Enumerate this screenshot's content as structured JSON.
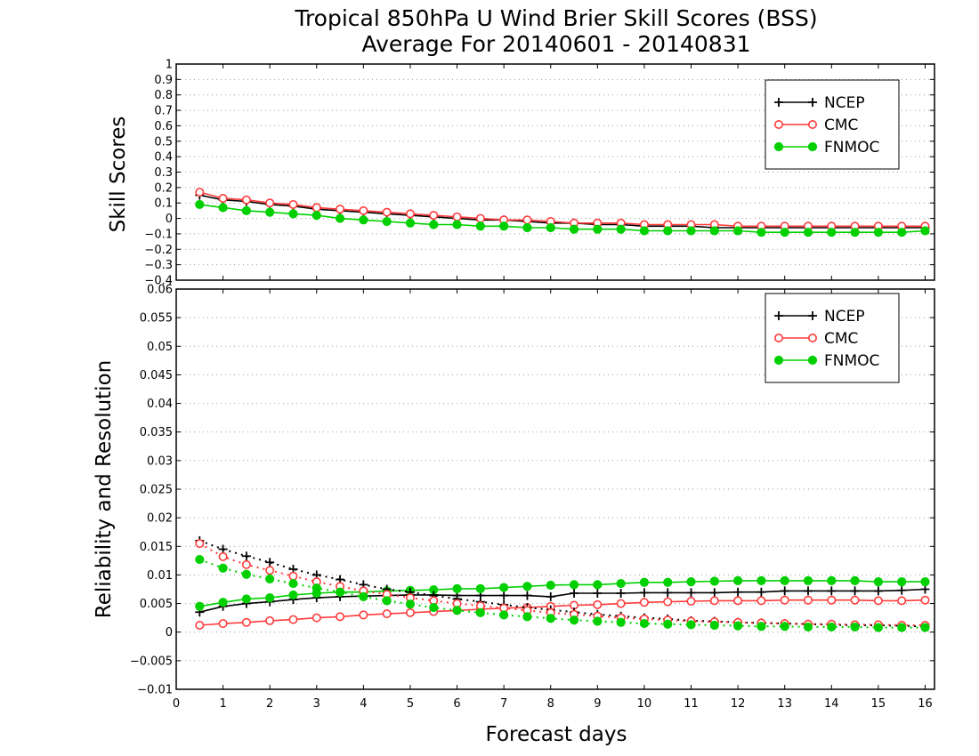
{
  "title_line1": "Tropical 850hPa U Wind Brier Skill Scores (BSS)",
  "title_line2": "Average For 20140601 - 20140831",
  "xlabel": "Forecast days",
  "colors": {
    "ncep": "#000000",
    "cmc": "#ff3b3b",
    "fnmoc": "#00d000",
    "grid": "#999999"
  },
  "chart_data": [
    {
      "type": "line",
      "panel": "top",
      "ylabel": "Skill Scores",
      "xlim": [
        0,
        16.2
      ],
      "ylim": [
        -0.4,
        1
      ],
      "xticks": [
        0,
        1,
        2,
        3,
        4,
        5,
        6,
        7,
        8,
        9,
        10,
        11,
        12,
        13,
        14,
        15,
        16
      ],
      "yticks": [
        -0.4,
        -0.3,
        -0.2,
        -0.1,
        0,
        0.1,
        0.2,
        0.3,
        0.4,
        0.5,
        0.6,
        0.7,
        0.8,
        0.9,
        1
      ],
      "ytick_labels": [
        "−0.4",
        "−0.3",
        "−0.2",
        "−0.1",
        "0",
        "0.1",
        "0.2",
        "0.3",
        "0.4",
        "0.5",
        "0.6",
        "0.7",
        "0.8",
        "0.9",
        "1"
      ],
      "grid": true,
      "legend": "top-right",
      "x": [
        0.5,
        1,
        1.5,
        2,
        2.5,
        3,
        3.5,
        4,
        4.5,
        5,
        5.5,
        6,
        6.5,
        7,
        7.5,
        8,
        8.5,
        9,
        9.5,
        10,
        10.5,
        11,
        11.5,
        12,
        12.5,
        13,
        13.5,
        14,
        14.5,
        15,
        15.5,
        16
      ],
      "series": [
        {
          "name": "NCEP",
          "key": "ncep",
          "marker": "plus",
          "style": "solid",
          "values": [
            0.15,
            0.12,
            0.11,
            0.09,
            0.08,
            0.06,
            0.05,
            0.04,
            0.03,
            0.02,
            0.01,
            0.0,
            -0.01,
            -0.01,
            -0.02,
            -0.03,
            -0.03,
            -0.04,
            -0.04,
            -0.05,
            -0.05,
            -0.05,
            -0.06,
            -0.06,
            -0.06,
            -0.06,
            -0.06,
            -0.06,
            -0.06,
            -0.06,
            -0.06,
            -0.06
          ]
        },
        {
          "name": "CMC",
          "key": "cmc",
          "marker": "open-circle",
          "style": "solid",
          "values": [
            0.17,
            0.13,
            0.12,
            0.1,
            0.09,
            0.07,
            0.06,
            0.05,
            0.04,
            0.03,
            0.02,
            0.01,
            0.0,
            -0.01,
            -0.01,
            -0.02,
            -0.03,
            -0.03,
            -0.03,
            -0.04,
            -0.04,
            -0.04,
            -0.04,
            -0.05,
            -0.05,
            -0.05,
            -0.05,
            -0.05,
            -0.05,
            -0.05,
            -0.05,
            -0.05
          ]
        },
        {
          "name": "FNMOC",
          "key": "fnmoc",
          "marker": "filled-circle",
          "style": "solid",
          "values": [
            0.09,
            0.07,
            0.05,
            0.04,
            0.03,
            0.02,
            0.0,
            -0.01,
            -0.02,
            -0.03,
            -0.04,
            -0.04,
            -0.05,
            -0.05,
            -0.06,
            -0.06,
            -0.07,
            -0.07,
            -0.07,
            -0.08,
            -0.08,
            -0.08,
            -0.08,
            -0.08,
            -0.09,
            -0.09,
            -0.09,
            -0.09,
            -0.09,
            -0.09,
            -0.09,
            -0.08
          ]
        }
      ]
    },
    {
      "type": "line",
      "panel": "bottom",
      "ylabel": "Reliability and Resolution",
      "xlabel": "Forecast days",
      "xlim": [
        0,
        16.2
      ],
      "ylim": [
        -0.01,
        0.06
      ],
      "xticks": [
        0,
        1,
        2,
        3,
        4,
        5,
        6,
        7,
        8,
        9,
        10,
        11,
        12,
        13,
        14,
        15,
        16
      ],
      "yticks": [
        -0.01,
        -0.005,
        0,
        0.005,
        0.01,
        0.015,
        0.02,
        0.025,
        0.03,
        0.035,
        0.04,
        0.045,
        0.05,
        0.055,
        0.06
      ],
      "ytick_labels": [
        "−0.01",
        "−0.005",
        "0",
        "0.005",
        "0.01",
        "0.015",
        "0.02",
        "0.025",
        "0.03",
        "0.035",
        "0.04",
        "0.045",
        "0.05",
        "0.055",
        "0.06"
      ],
      "grid": true,
      "legend": "top-right",
      "x": [
        0.5,
        1,
        1.5,
        2,
        2.5,
        3,
        3.5,
        4,
        4.5,
        5,
        5.5,
        6,
        6.5,
        7,
        7.5,
        8,
        8.5,
        9,
        9.5,
        10,
        10.5,
        11,
        11.5,
        12,
        12.5,
        13,
        13.5,
        14,
        14.5,
        15,
        15.5,
        16
      ],
      "series": [
        {
          "name": "NCEP",
          "key": "ncep",
          "marker": "plus",
          "style": "solid",
          "legend": true,
          "values": [
            0.0035,
            0.0045,
            0.005,
            0.0053,
            0.0057,
            0.006,
            0.0062,
            0.0063,
            0.0064,
            0.0065,
            0.0065,
            0.0064,
            0.0064,
            0.0064,
            0.0064,
            0.0062,
            0.0068,
            0.0068,
            0.0068,
            0.0069,
            0.0069,
            0.0069,
            0.0069,
            0.007,
            0.007,
            0.0072,
            0.0072,
            0.0072,
            0.0072,
            0.0072,
            0.0073,
            0.0075
          ]
        },
        {
          "name": "CMC",
          "key": "cmc",
          "marker": "open-circle",
          "style": "solid",
          "legend": true,
          "values": [
            0.0012,
            0.0015,
            0.0017,
            0.002,
            0.0022,
            0.0025,
            0.0027,
            0.003,
            0.0032,
            0.0034,
            0.0036,
            0.0038,
            0.004,
            0.0042,
            0.0043,
            0.0045,
            0.0047,
            0.0048,
            0.005,
            0.0052,
            0.0053,
            0.0054,
            0.0055,
            0.0055,
            0.0055,
            0.0056,
            0.0056,
            0.0056,
            0.0056,
            0.0055,
            0.0055,
            0.0056
          ]
        },
        {
          "name": "FNMOC",
          "key": "fnmoc",
          "marker": "filled-circle",
          "style": "solid",
          "legend": true,
          "values": [
            0.0045,
            0.0052,
            0.0058,
            0.006,
            0.0065,
            0.0068,
            0.007,
            0.007,
            0.0072,
            0.0073,
            0.0074,
            0.0076,
            0.0076,
            0.0078,
            0.008,
            0.0082,
            0.0083,
            0.0083,
            0.0085,
            0.0087,
            0.0087,
            0.0088,
            0.0089,
            0.009,
            0.009,
            0.009,
            0.009,
            0.009,
            0.009,
            0.0088,
            0.0088,
            0.0088
          ]
        },
        {
          "name": "",
          "key": "ncep",
          "marker": "plus",
          "style": "dotted",
          "legend": false,
          "values": [
            0.016,
            0.0145,
            0.0133,
            0.0122,
            0.011,
            0.01,
            0.0092,
            0.0083,
            0.0075,
            0.007,
            0.0064,
            0.0058,
            0.0053,
            0.0048,
            0.0043,
            0.0039,
            0.0035,
            0.0031,
            0.0028,
            0.0025,
            0.0023,
            0.002,
            0.0019,
            0.0017,
            0.0016,
            0.0015,
            0.0014,
            0.0013,
            0.0012,
            0.0012,
            0.0011,
            0.001
          ]
        },
        {
          "name": "",
          "key": "cmc",
          "marker": "open-circle",
          "style": "dotted",
          "legend": false,
          "values": [
            0.0155,
            0.0132,
            0.0118,
            0.0108,
            0.0098,
            0.0088,
            0.008,
            0.0072,
            0.0066,
            0.006,
            0.0055,
            0.005,
            0.0046,
            0.0042,
            0.0038,
            0.0034,
            0.0031,
            0.0028,
            0.0025,
            0.0023,
            0.0021,
            0.0019,
            0.0018,
            0.0017,
            0.0016,
            0.0015,
            0.0014,
            0.0014,
            0.0013,
            0.0013,
            0.0012,
            0.0012
          ]
        },
        {
          "name": "",
          "key": "fnmoc",
          "marker": "filled-circle",
          "style": "dotted",
          "legend": false,
          "values": [
            0.0127,
            0.0112,
            0.0101,
            0.0093,
            0.0085,
            0.0077,
            0.007,
            0.0062,
            0.0055,
            0.0049,
            0.0043,
            0.0038,
            0.0034,
            0.003,
            0.0027,
            0.0024,
            0.0021,
            0.0019,
            0.0017,
            0.0015,
            0.0014,
            0.0013,
            0.0012,
            0.0011,
            0.001,
            0.001,
            0.0009,
            0.0009,
            0.0009,
            0.0008,
            0.0008,
            0.0008
          ]
        }
      ]
    }
  ]
}
